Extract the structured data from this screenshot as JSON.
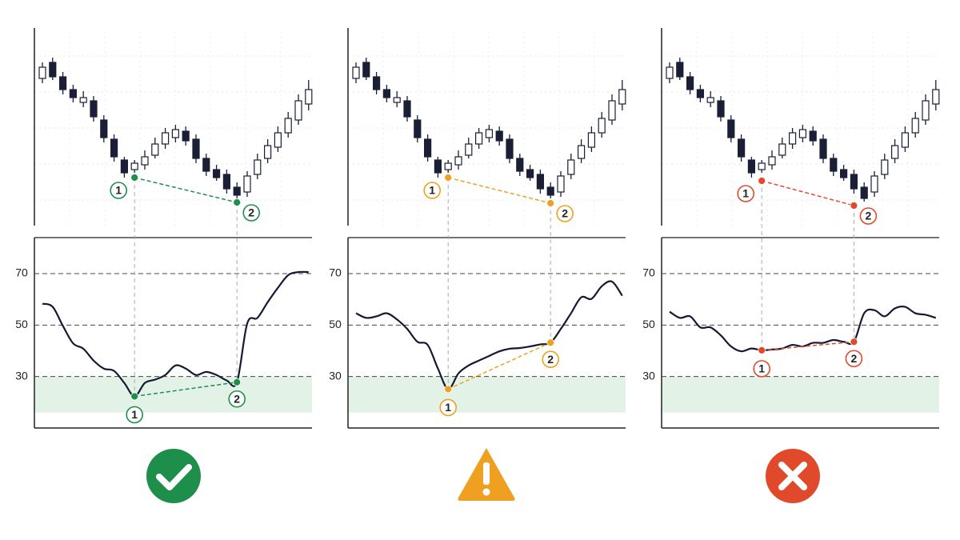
{
  "chart_data": [
    {
      "type": "rsi-divergence",
      "color": "#1e8f4a",
      "candles": [
        [
          184,
          204,
          178,
          198
        ],
        [
          204,
          210,
          182,
          186
        ],
        [
          186,
          192,
          164,
          170
        ],
        [
          170,
          176,
          154,
          160
        ],
        [
          154,
          168,
          148,
          160
        ],
        [
          156,
          162,
          130,
          136
        ],
        [
          132,
          138,
          104,
          110
        ],
        [
          108,
          114,
          80,
          86
        ],
        [
          82,
          86,
          60,
          66
        ],
        [
          70,
          82,
          66,
          78
        ],
        [
          76,
          94,
          70,
          86
        ],
        [
          88,
          110,
          84,
          102
        ],
        [
          102,
          122,
          96,
          116
        ],
        [
          110,
          126,
          104,
          120
        ],
        [
          118,
          124,
          100,
          106
        ],
        [
          108,
          114,
          78,
          84
        ],
        [
          84,
          90,
          62,
          68
        ],
        [
          70,
          76,
          56,
          60
        ],
        [
          64,
          70,
          40,
          46
        ],
        [
          48,
          54,
          34,
          38
        ],
        [
          42,
          68,
          36,
          62
        ],
        [
          64,
          90,
          58,
          82
        ],
        [
          84,
          108,
          78,
          100
        ],
        [
          98,
          124,
          92,
          116
        ],
        [
          116,
          142,
          110,
          134
        ],
        [
          132,
          164,
          126,
          156
        ],
        [
          152,
          182,
          144,
          170
        ]
      ],
      "price_ylim": [
        0,
        250
      ],
      "rsi": [
        58.3,
        57.1,
        49.7,
        42.9,
        40.8,
        36.2,
        33.1,
        32.2,
        27.5,
        22.3,
        27.5,
        28.8,
        30.6,
        34.3,
        33.1,
        30.6,
        31.8,
        30.6,
        28.5,
        27.8,
        50.6,
        52.8,
        58.9,
        64.5,
        69.4,
        70.6,
        70.6
      ],
      "ylim": [
        10,
        84
      ],
      "yticks": [
        70,
        50,
        30
      ],
      "oversold_zone": [
        16,
        30
      ],
      "price_points": [
        {
          "index": 9,
          "value": 60,
          "label": "1"
        },
        {
          "index": 19,
          "value": 29,
          "label": "2"
        }
      ],
      "rsi_points": [
        {
          "index": 9,
          "value": 22.3,
          "label": "1"
        },
        {
          "index": 19,
          "value": 27.8,
          "label": "2"
        }
      ]
    },
    {
      "type": "rsi-divergence",
      "color": "#f0a020",
      "candles": [
        [
          184,
          204,
          178,
          198
        ],
        [
          204,
          210,
          182,
          186
        ],
        [
          186,
          192,
          164,
          170
        ],
        [
          170,
          176,
          154,
          160
        ],
        [
          154,
          168,
          148,
          160
        ],
        [
          156,
          162,
          130,
          136
        ],
        [
          132,
          138,
          104,
          110
        ],
        [
          108,
          114,
          80,
          86
        ],
        [
          82,
          86,
          60,
          66
        ],
        [
          70,
          82,
          66,
          78
        ],
        [
          76,
          94,
          70,
          86
        ],
        [
          88,
          110,
          84,
          102
        ],
        [
          102,
          122,
          96,
          116
        ],
        [
          110,
          126,
          104,
          120
        ],
        [
          118,
          124,
          100,
          106
        ],
        [
          108,
          114,
          78,
          84
        ],
        [
          84,
          90,
          62,
          68
        ],
        [
          70,
          76,
          56,
          60
        ],
        [
          64,
          70,
          40,
          46
        ],
        [
          48,
          54,
          34,
          38
        ],
        [
          42,
          68,
          36,
          62
        ],
        [
          64,
          90,
          58,
          82
        ],
        [
          84,
          108,
          78,
          100
        ],
        [
          98,
          124,
          92,
          116
        ],
        [
          116,
          142,
          110,
          134
        ],
        [
          132,
          164,
          126,
          156
        ],
        [
          152,
          182,
          144,
          170
        ]
      ],
      "price_ylim": [
        0,
        250
      ],
      "rsi": [
        54.6,
        52.8,
        53.4,
        54.6,
        52.2,
        48.5,
        43.5,
        42.3,
        33.1,
        25.1,
        31.2,
        34.3,
        36.2,
        38.0,
        39.8,
        40.8,
        41.1,
        41.7,
        42.5,
        43.2,
        48.5,
        54.6,
        60.8,
        60.2,
        65.1,
        66.9,
        61.4
      ],
      "ylim": [
        10,
        84
      ],
      "yticks": [
        70,
        50,
        30
      ],
      "oversold_zone": [
        16,
        30
      ],
      "price_points": [
        {
          "index": 9,
          "value": 60,
          "label": "1"
        },
        {
          "index": 19,
          "value": 28,
          "label": "2"
        }
      ],
      "rsi_points": [
        {
          "index": 9,
          "value": 25.1,
          "label": "1"
        },
        {
          "index": 19,
          "value": 43.2,
          "label": "2"
        }
      ]
    },
    {
      "type": "rsi-divergence",
      "color": "#e04a2a",
      "candles": [
        [
          184,
          204,
          178,
          198
        ],
        [
          204,
          210,
          182,
          186
        ],
        [
          186,
          192,
          164,
          170
        ],
        [
          170,
          176,
          154,
          160
        ],
        [
          154,
          168,
          148,
          160
        ],
        [
          156,
          162,
          130,
          136
        ],
        [
          132,
          138,
          104,
          110
        ],
        [
          108,
          114,
          80,
          86
        ],
        [
          82,
          86,
          60,
          66
        ],
        [
          70,
          82,
          66,
          78
        ],
        [
          76,
          94,
          70,
          86
        ],
        [
          88,
          110,
          84,
          102
        ],
        [
          102,
          122,
          96,
          116
        ],
        [
          110,
          126,
          104,
          120
        ],
        [
          118,
          124,
          100,
          106
        ],
        [
          108,
          114,
          78,
          84
        ],
        [
          84,
          90,
          62,
          68
        ],
        [
          70,
          76,
          56,
          60
        ],
        [
          64,
          70,
          40,
          46
        ],
        [
          48,
          54,
          30,
          34
        ],
        [
          42,
          68,
          36,
          62
        ],
        [
          64,
          90,
          58,
          82
        ],
        [
          84,
          108,
          78,
          100
        ],
        [
          98,
          124,
          92,
          116
        ],
        [
          116,
          142,
          110,
          134
        ],
        [
          132,
          164,
          126,
          156
        ],
        [
          152,
          182,
          144,
          170
        ]
      ],
      "price_ylim": [
        0,
        250
      ],
      "rsi": [
        55.2,
        52.8,
        53.4,
        49.1,
        49.1,
        46.0,
        41.7,
        39.8,
        40.9,
        40.2,
        40.5,
        40.9,
        42.3,
        41.7,
        43.1,
        43.1,
        44.2,
        43.5,
        43.5,
        54.6,
        55.8,
        53.4,
        56.5,
        57.1,
        54.6,
        54.0,
        52.8
      ],
      "ylim": [
        10,
        84
      ],
      "yticks": [
        70,
        50,
        30
      ],
      "oversold_zone": [
        16,
        30
      ],
      "price_points": [
        {
          "index": 9,
          "value": 56,
          "label": "1"
        },
        {
          "index": 18,
          "value": 25,
          "label": "2"
        }
      ],
      "rsi_points": [
        {
          "index": 9,
          "value": 40.2,
          "label": "1"
        },
        {
          "index": 18,
          "value": 43.5,
          "label": "2"
        }
      ]
    }
  ]
}
